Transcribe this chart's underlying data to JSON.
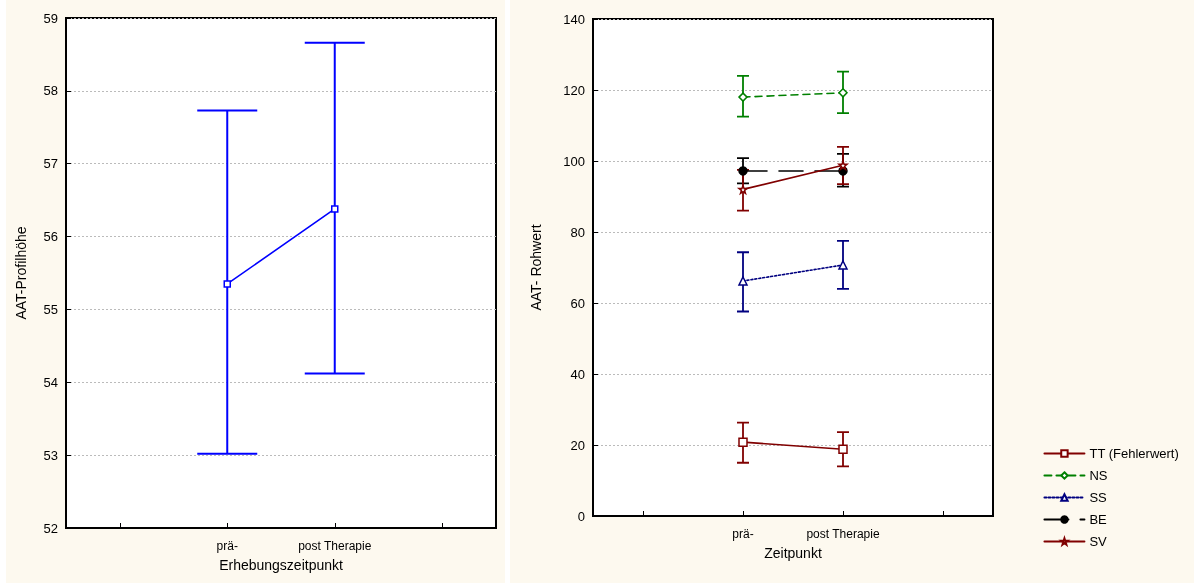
{
  "chart_data": [
    {
      "type": "line",
      "xlabel": "Erhebungszeitpunkt",
      "ylabel": "AAT-Profilhöhe",
      "categories": [
        null,
        "prä-",
        "post Therapie",
        null
      ],
      "ylim": [
        52,
        59
      ],
      "yticks": [
        52,
        53,
        54,
        55,
        56,
        57,
        58,
        59
      ],
      "grid": "y",
      "legend": false,
      "marker": "square",
      "line_style": "solid",
      "series": [
        {
          "color": "#0000ff",
          "values": [
            null,
            55.35,
            56.38,
            null
          ],
          "errors": [
            null,
            [
              53.02,
              57.73
            ],
            [
              54.12,
              58.66
            ],
            null
          ]
        }
      ]
    },
    {
      "type": "line",
      "xlabel": "Zeitpunkt",
      "ylabel": "AAT- Rohwert",
      "categories": [
        null,
        "prä-",
        "post Therapie",
        null
      ],
      "ylim": [
        0,
        140
      ],
      "yticks": [
        0,
        20,
        40,
        60,
        80,
        100,
        120,
        140
      ],
      "grid": "y",
      "legend": "bottom right",
      "series": [
        {
          "name": "TT (Fehlerwert)",
          "color": "#800000",
          "marker": "square",
          "line_style": "solid",
          "values": [
            null,
            20.8,
            18.8,
            null
          ],
          "errors": [
            null,
            [
              15,
              26.3
            ],
            [
              14,
              23.6
            ],
            null
          ]
        },
        {
          "name": "NS",
          "color": "#008000",
          "marker": "diamond",
          "line_style": "dashed",
          "values": [
            null,
            118,
            119.2,
            null
          ],
          "errors": [
            null,
            [
              112.5,
              124
            ],
            [
              113.5,
              125.2
            ],
            null
          ]
        },
        {
          "name": "SS",
          "color": "#000080",
          "marker": "triangle",
          "line_style": "dotted",
          "values": [
            null,
            66.2,
            70.7,
            null
          ],
          "errors": [
            null,
            [
              57.6,
              74.3
            ],
            [
              64,
              77.5
            ],
            null
          ]
        },
        {
          "name": "BE",
          "color": "#000000",
          "marker": "circle",
          "line_style": "dashed",
          "values": [
            null,
            97.2,
            97.2,
            null
          ],
          "errors": [
            null,
            [
              93.7,
              100.8
            ],
            [
              92.8,
              102
            ],
            null
          ]
        },
        {
          "name": "SV",
          "color": "#800000",
          "marker": "star",
          "line_style": "solid",
          "values": [
            null,
            92,
            98.8,
            null
          ],
          "errors": [
            null,
            [
              86,
              97.5
            ],
            [
              93.5,
              104
            ],
            null
          ]
        }
      ]
    }
  ]
}
